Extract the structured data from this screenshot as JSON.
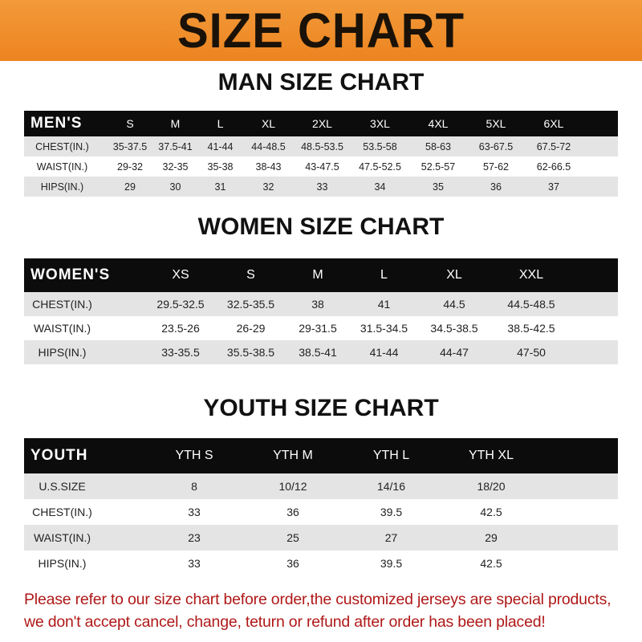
{
  "banner": {
    "title": "SIZE CHART",
    "color": "#ef8a25"
  },
  "men": {
    "title": "MAN SIZE CHART",
    "header": [
      "MEN'S",
      "S",
      "M",
      "L",
      "XL",
      "2XL",
      "3XL",
      "4XL",
      "5XL",
      "6XL"
    ],
    "rows": [
      [
        "CHEST(IN.)",
        "35-37.5",
        "37.5-41",
        "41-44",
        "44-48.5",
        "48.5-53.5",
        "53.5-58",
        "58-63",
        "63-67.5",
        "67.5-72"
      ],
      [
        "WAIST(IN.)",
        "29-32",
        "32-35",
        "35-38",
        "38-43",
        "43-47.5",
        "47.5-52.5",
        "52.5-57",
        "57-62",
        "62-66.5"
      ],
      [
        "HIPS(IN.)",
        "29",
        "30",
        "31",
        "32",
        "33",
        "34",
        "35",
        "36",
        "37"
      ]
    ]
  },
  "women": {
    "title": "WOMEN SIZE CHART",
    "header": [
      "WOMEN'S",
      "XS",
      "S",
      "M",
      "L",
      "XL",
      "XXL"
    ],
    "rows": [
      [
        "CHEST(IN.)",
        "29.5-32.5",
        "32.5-35.5",
        "38",
        "41",
        "44.5",
        "44.5-48.5"
      ],
      [
        "WAIST(IN.)",
        "23.5-26",
        "26-29",
        "29-31.5",
        "31.5-34.5",
        "34.5-38.5",
        "38.5-42.5"
      ],
      [
        "HIPS(IN.)",
        "33-35.5",
        "35.5-38.5",
        "38.5-41",
        "41-44",
        "44-47",
        "47-50"
      ]
    ]
  },
  "youth": {
    "title": "YOUTH SIZE CHART",
    "header": [
      "YOUTH",
      "YTH S",
      "YTH M",
      "YTH L",
      "YTH XL"
    ],
    "rows": [
      [
        "U.S.SIZE",
        "8",
        "10/12",
        "14/16",
        "18/20"
      ],
      [
        "CHEST(IN.)",
        "33",
        "36",
        "39.5",
        "42.5"
      ],
      [
        "WAIST(IN.)",
        "23",
        "25",
        "27",
        "29"
      ],
      [
        "HIPS(IN.)",
        "33",
        "36",
        "39.5",
        "42.5"
      ]
    ]
  },
  "note": {
    "line1": "Please refer to our size chart before order,the customized jerseys are special products,",
    "line2": "we don't accept cancel, change, teturn or refund after order has been placed!",
    "color": "#b01818"
  }
}
